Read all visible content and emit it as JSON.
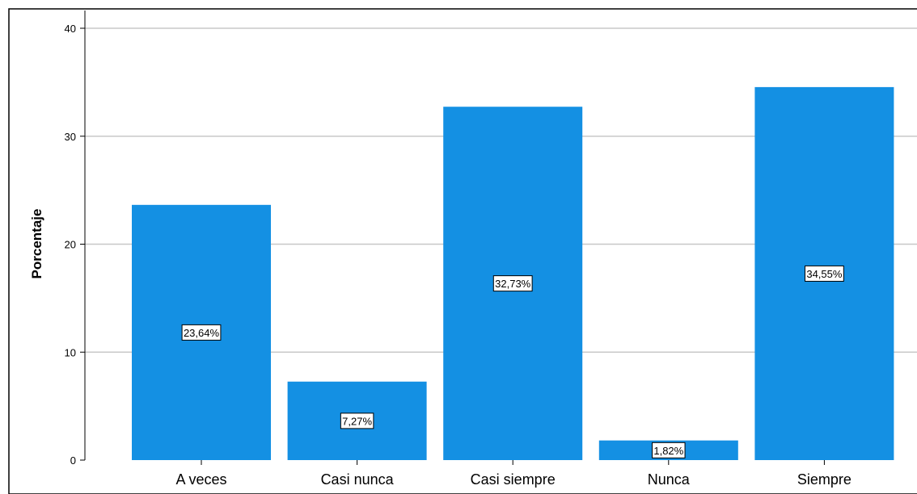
{
  "chart_data": {
    "type": "bar",
    "categories": [
      "A veces",
      "Casi nunca",
      "Casi siempre",
      "Nunca",
      "Siempre"
    ],
    "values": [
      23.64,
      7.27,
      32.73,
      1.82,
      34.55
    ],
    "data_labels": [
      "23,64%",
      "7,27%",
      "32,73%",
      "1,82%",
      "34,55%"
    ],
    "ylabel": "Porcentaje",
    "xlabel": "",
    "ylim": [
      0,
      40
    ],
    "yticks": [
      0,
      10,
      20,
      30,
      40
    ],
    "ytick_labels": [
      "0",
      "10",
      "20",
      "30",
      "40"
    ],
    "grid": true,
    "legend": "none",
    "bar_color": "#1490e3"
  }
}
